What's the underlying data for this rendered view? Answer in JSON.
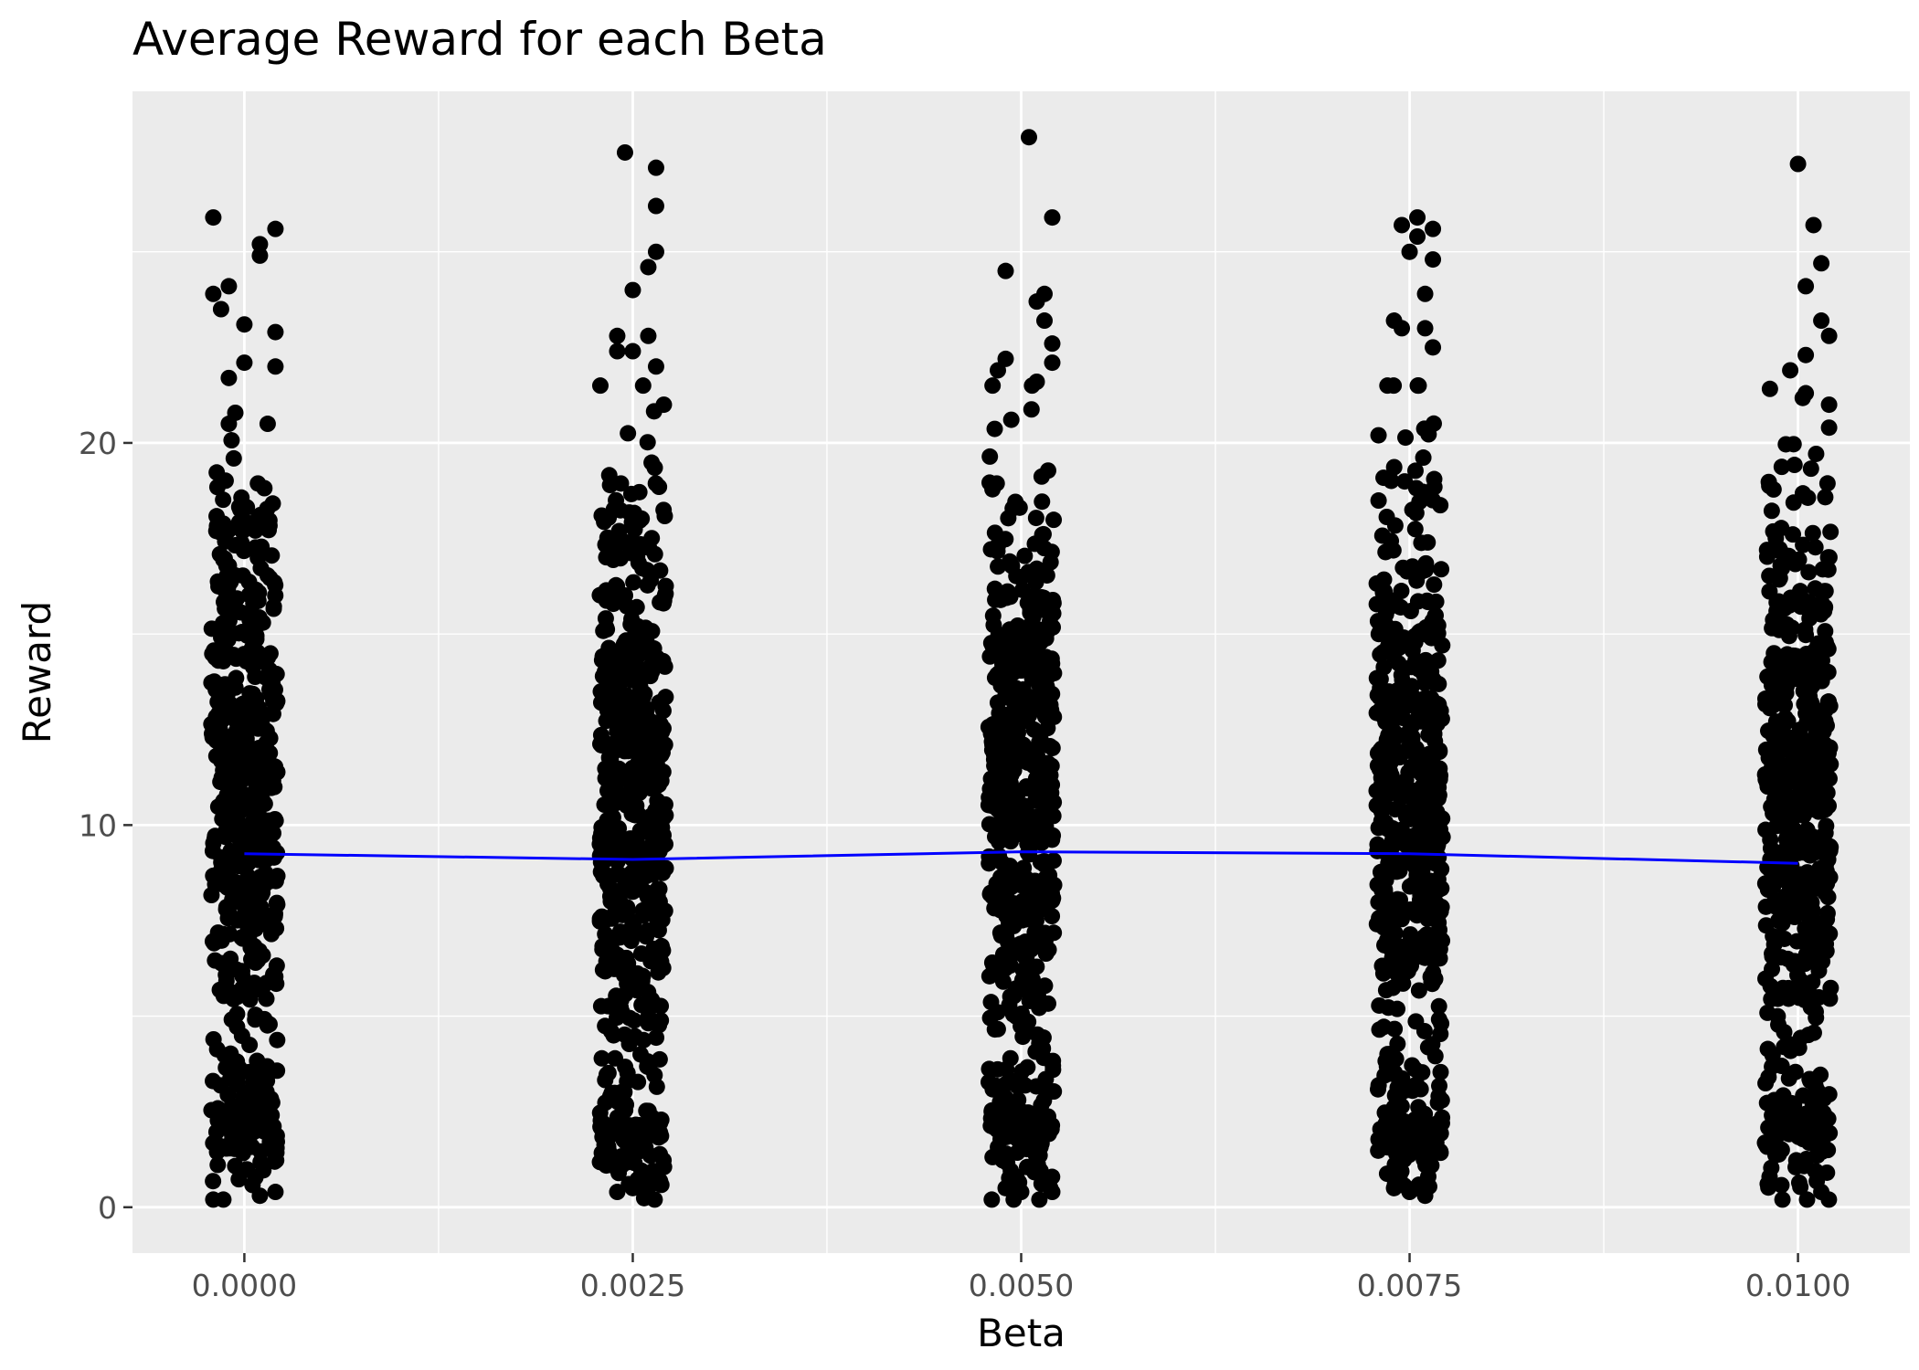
{
  "chart_data": {
    "type": "scatter",
    "title": "Average Reward for each Beta",
    "xlabel": "Beta",
    "ylabel": "Reward",
    "xlim": [
      -0.00072,
      0.01072
    ],
    "ylim": [
      -1.2,
      29.2
    ],
    "x_ticks": [
      0.0,
      0.0025,
      0.005,
      0.0075,
      0.01
    ],
    "x_tick_labels": [
      "0.0000",
      "0.0025",
      "0.0050",
      "0.0075",
      "0.0100"
    ],
    "x_minor_ticks": [
      0.00125,
      0.00375,
      0.00625,
      0.00875
    ],
    "y_ticks": [
      0,
      10,
      20
    ],
    "y_tick_labels": [
      "0",
      "10",
      "20"
    ],
    "y_minor_ticks": [
      5,
      15,
      25
    ],
    "grid": true,
    "legend": "none",
    "colors": {
      "panel": "#ebebeb",
      "grid": "#ffffff",
      "point": "#000000",
      "trend": "#0000ff"
    },
    "jitter_width": 0.00025,
    "groups": [
      {
        "beta": 0.0,
        "count": 600,
        "extremes": [
          {
            "x": -0.0002,
            "y": 25.9
          },
          {
            "x": 0.0002,
            "y": 25.6
          },
          {
            "x": 0.0001,
            "y": 25.2
          },
          {
            "x": 0.0001,
            "y": 24.9
          },
          {
            "x": -0.0001,
            "y": 24.1
          },
          {
            "x": -0.0002,
            "y": 23.9
          },
          {
            "x": -0.00015,
            "y": 23.5
          },
          {
            "x": 0.0,
            "y": 23.1
          },
          {
            "x": 0.0002,
            "y": 22.9
          },
          {
            "x": 0.0,
            "y": 22.1
          },
          {
            "x": 0.0002,
            "y": 22.0
          },
          {
            "x": -0.0001,
            "y": 21.7
          },
          {
            "x": -0.0001,
            "y": 20.5
          },
          {
            "x": 0.00015,
            "y": 20.5
          },
          {
            "x": -0.0002,
            "y": 0.2
          },
          {
            "x": 0.0001,
            "y": 0.3
          },
          {
            "x": 0.0002,
            "y": 0.4
          }
        ]
      },
      {
        "beta": 0.0025,
        "count": 600,
        "extremes": [
          {
            "x": 0.00245,
            "y": 27.6
          },
          {
            "x": 0.00265,
            "y": 27.2
          },
          {
            "x": 0.00265,
            "y": 26.2
          },
          {
            "x": 0.00265,
            "y": 25.0
          },
          {
            "x": 0.0026,
            "y": 24.6
          },
          {
            "x": 0.0025,
            "y": 24.0
          },
          {
            "x": 0.0024,
            "y": 22.8
          },
          {
            "x": 0.0026,
            "y": 22.8
          },
          {
            "x": 0.0024,
            "y": 22.4
          },
          {
            "x": 0.0025,
            "y": 22.4
          },
          {
            "x": 0.00265,
            "y": 22.0
          },
          {
            "x": 0.0027,
            "y": 21.0
          },
          {
            "x": 0.0023,
            "y": 18.1
          },
          {
            "x": 0.0024,
            "y": 0.4
          },
          {
            "x": 0.0026,
            "y": 0.3
          },
          {
            "x": 0.0025,
            "y": 0.5
          }
        ]
      },
      {
        "beta": 0.005,
        "count": 600,
        "extremes": [
          {
            "x": 0.00505,
            "y": 28.0
          },
          {
            "x": 0.0052,
            "y": 25.9
          },
          {
            "x": 0.0049,
            "y": 24.5
          },
          {
            "x": 0.00515,
            "y": 23.9
          },
          {
            "x": 0.0051,
            "y": 23.7
          },
          {
            "x": 0.00515,
            "y": 23.2
          },
          {
            "x": 0.0052,
            "y": 22.6
          },
          {
            "x": 0.0049,
            "y": 22.2
          },
          {
            "x": 0.0052,
            "y": 22.1
          },
          {
            "x": 0.00485,
            "y": 21.9
          },
          {
            "x": 0.0051,
            "y": 21.6
          },
          {
            "x": 0.0052,
            "y": 0.4
          },
          {
            "x": 0.0049,
            "y": 0.5
          },
          {
            "x": 0.005,
            "y": 0.4
          }
        ]
      },
      {
        "beta": 0.0075,
        "count": 600,
        "extremes": [
          {
            "x": 0.00755,
            "y": 25.9
          },
          {
            "x": 0.00745,
            "y": 25.7
          },
          {
            "x": 0.00765,
            "y": 25.6
          },
          {
            "x": 0.00755,
            "y": 25.4
          },
          {
            "x": 0.0075,
            "y": 25.0
          },
          {
            "x": 0.00765,
            "y": 24.8
          },
          {
            "x": 0.0076,
            "y": 23.9
          },
          {
            "x": 0.0074,
            "y": 23.2
          },
          {
            "x": 0.00745,
            "y": 23.0
          },
          {
            "x": 0.0076,
            "y": 23.0
          },
          {
            "x": 0.00765,
            "y": 22.5
          },
          {
            "x": 0.0073,
            "y": 20.2
          },
          {
            "x": 0.0076,
            "y": 0.3
          },
          {
            "x": 0.0075,
            "y": 0.4
          },
          {
            "x": 0.0074,
            "y": 0.5
          }
        ]
      },
      {
        "beta": 0.01,
        "count": 600,
        "extremes": [
          {
            "x": 0.01,
            "y": 27.3
          },
          {
            "x": 0.0101,
            "y": 25.7
          },
          {
            "x": 0.01015,
            "y": 24.7
          },
          {
            "x": 0.01005,
            "y": 24.1
          },
          {
            "x": 0.01015,
            "y": 23.2
          },
          {
            "x": 0.0102,
            "y": 22.8
          },
          {
            "x": 0.01005,
            "y": 22.3
          },
          {
            "x": 0.00995,
            "y": 21.9
          },
          {
            "x": 0.01005,
            "y": 21.3
          },
          {
            "x": 0.0102,
            "y": 21.0
          },
          {
            "x": 0.0102,
            "y": 20.4
          },
          {
            "x": 0.0099,
            "y": 0.2
          },
          {
            "x": 0.01015,
            "y": 0.4
          }
        ]
      }
    ],
    "trend_line": {
      "x": [
        0.0,
        0.0025,
        0.005,
        0.0075,
        0.01
      ],
      "y": [
        9.25,
        9.1,
        9.3,
        9.25,
        9.0
      ]
    }
  }
}
